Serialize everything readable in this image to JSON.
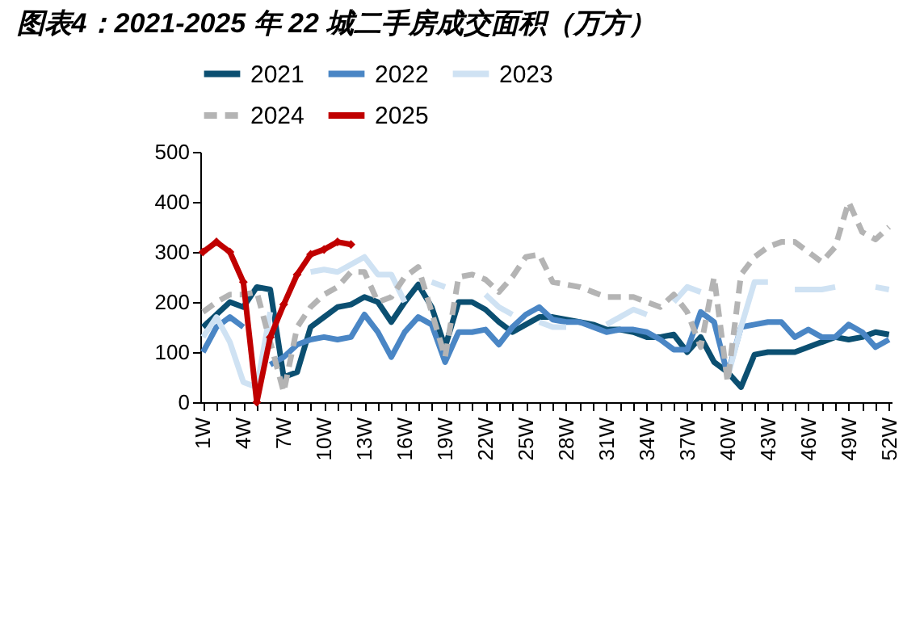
{
  "chart_data": {
    "type": "line",
    "title": "图表4：2021-2025 年 22 城二手房成交面积（万方）",
    "categories": [
      "1W",
      null,
      null,
      "4W",
      null,
      null,
      "7W",
      null,
      null,
      "10W",
      null,
      null,
      "13W",
      null,
      null,
      "16W",
      null,
      null,
      "19W",
      null,
      null,
      "22W",
      null,
      null,
      "25W",
      null,
      null,
      "28W",
      null,
      null,
      "31W",
      null,
      null,
      "34W",
      null,
      null,
      "37W",
      null,
      null,
      "40W",
      null,
      null,
      "43W",
      null,
      null,
      "46W",
      null,
      null,
      "49W",
      null,
      null,
      "52W"
    ],
    "ylim": [
      0,
      500
    ],
    "yticks": [
      0,
      100,
      200,
      300,
      400,
      500
    ],
    "grid": false,
    "legend": "top",
    "series": [
      {
        "name": "2021",
        "color": "#0b4f71",
        "values": [
          150,
          175,
          200,
          190,
          230,
          225,
          50,
          60,
          150,
          170,
          190,
          195,
          210,
          200,
          160,
          200,
          235,
          190,
          110,
          200,
          200,
          185,
          160,
          140,
          155,
          170,
          170,
          165,
          160,
          155,
          145,
          145,
          140,
          130,
          130,
          135,
          100,
          130,
          80,
          60,
          30,
          95,
          100,
          100,
          100,
          110,
          120,
          130,
          125,
          130,
          140,
          135
        ]
      },
      {
        "name": "2022",
        "color": "#4a86c5",
        "values": [
          100,
          150,
          170,
          150,
          null,
          75,
          90,
          115,
          125,
          130,
          125,
          130,
          175,
          140,
          90,
          140,
          170,
          155,
          80,
          140,
          140,
          145,
          115,
          150,
          175,
          190,
          165,
          160,
          160,
          150,
          140,
          145,
          145,
          140,
          125,
          105,
          105,
          180,
          160,
          55,
          150,
          155,
          160,
          160,
          130,
          145,
          130,
          130,
          155,
          140,
          110,
          125
        ]
      },
      {
        "name": "2023",
        "color": "#cfe2f3",
        "values": [
          130,
          170,
          120,
          40,
          30,
          180,
          null,
          null,
          260,
          265,
          260,
          275,
          290,
          255,
          255,
          200,
          null,
          240,
          230,
          null,
          null,
          215,
          190,
          175,
          null,
          160,
          150,
          150,
          null,
          null,
          155,
          170,
          185,
          175,
          null,
          200,
          230,
          220,
          null,
          50,
          150,
          240,
          240,
          null,
          225,
          225,
          225,
          230,
          null,
          null,
          230,
          225
        ]
      },
      {
        "name": "2024",
        "color": "#b4b4b4",
        "line_style": "dashed",
        "values": [
          180,
          200,
          215,
          215,
          220,
          120,
          20,
          150,
          190,
          215,
          230,
          260,
          260,
          200,
          210,
          250,
          270,
          180,
          90,
          250,
          255,
          245,
          220,
          250,
          290,
          295,
          240,
          235,
          230,
          220,
          210,
          210,
          210,
          200,
          190,
          215,
          180,
          110,
          250,
          40,
          255,
          290,
          310,
          320,
          320,
          300,
          280,
          310,
          400,
          340,
          325,
          350
        ]
      },
      {
        "name": "2025",
        "color": "#c00000",
        "marker": "diamond",
        "values": [
          300,
          320,
          300,
          240,
          0,
          130,
          195,
          255,
          295,
          305,
          320,
          315,
          null,
          null,
          null,
          null,
          null,
          null,
          null,
          null,
          null,
          null,
          null,
          null,
          null,
          null,
          null,
          null,
          null,
          null,
          null,
          null,
          null,
          null,
          null,
          null,
          null,
          null,
          null,
          null,
          null,
          null,
          null,
          null,
          null,
          null,
          null,
          null,
          null,
          null,
          null,
          null
        ]
      }
    ]
  }
}
